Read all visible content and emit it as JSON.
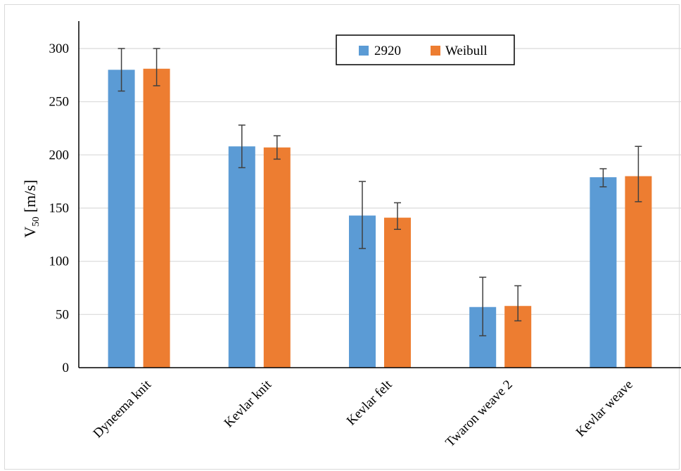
{
  "chart_data": {
    "type": "bar",
    "title": "",
    "xlabel": "",
    "ylabel": "V",
    "ylabel_subscript": "50",
    "ylabel_unit": "[m/s]",
    "ylim": [
      0,
      325
    ],
    "yticks": [
      0,
      50,
      100,
      150,
      200,
      250,
      300
    ],
    "grid": "horizontal",
    "legend_position": "top-right",
    "categories": [
      "Dyneema knit",
      "Kevlar knit",
      "Kevlar felt",
      "Twaron weave 2",
      "Kevlar weave"
    ],
    "series": [
      {
        "name": "2920",
        "color": "#5b9bd5",
        "values": [
          280,
          208,
          143,
          57,
          179
        ],
        "error_low": [
          260,
          188,
          112,
          30,
          170
        ],
        "error_high": [
          300,
          228,
          175,
          85,
          187
        ]
      },
      {
        "name": "Weibull",
        "color": "#ed7d31",
        "values": [
          281,
          207,
          141,
          58,
          180
        ],
        "error_low": [
          265,
          196,
          130,
          44,
          156
        ],
        "error_high": [
          300,
          218,
          155,
          77,
          208
        ]
      }
    ]
  }
}
